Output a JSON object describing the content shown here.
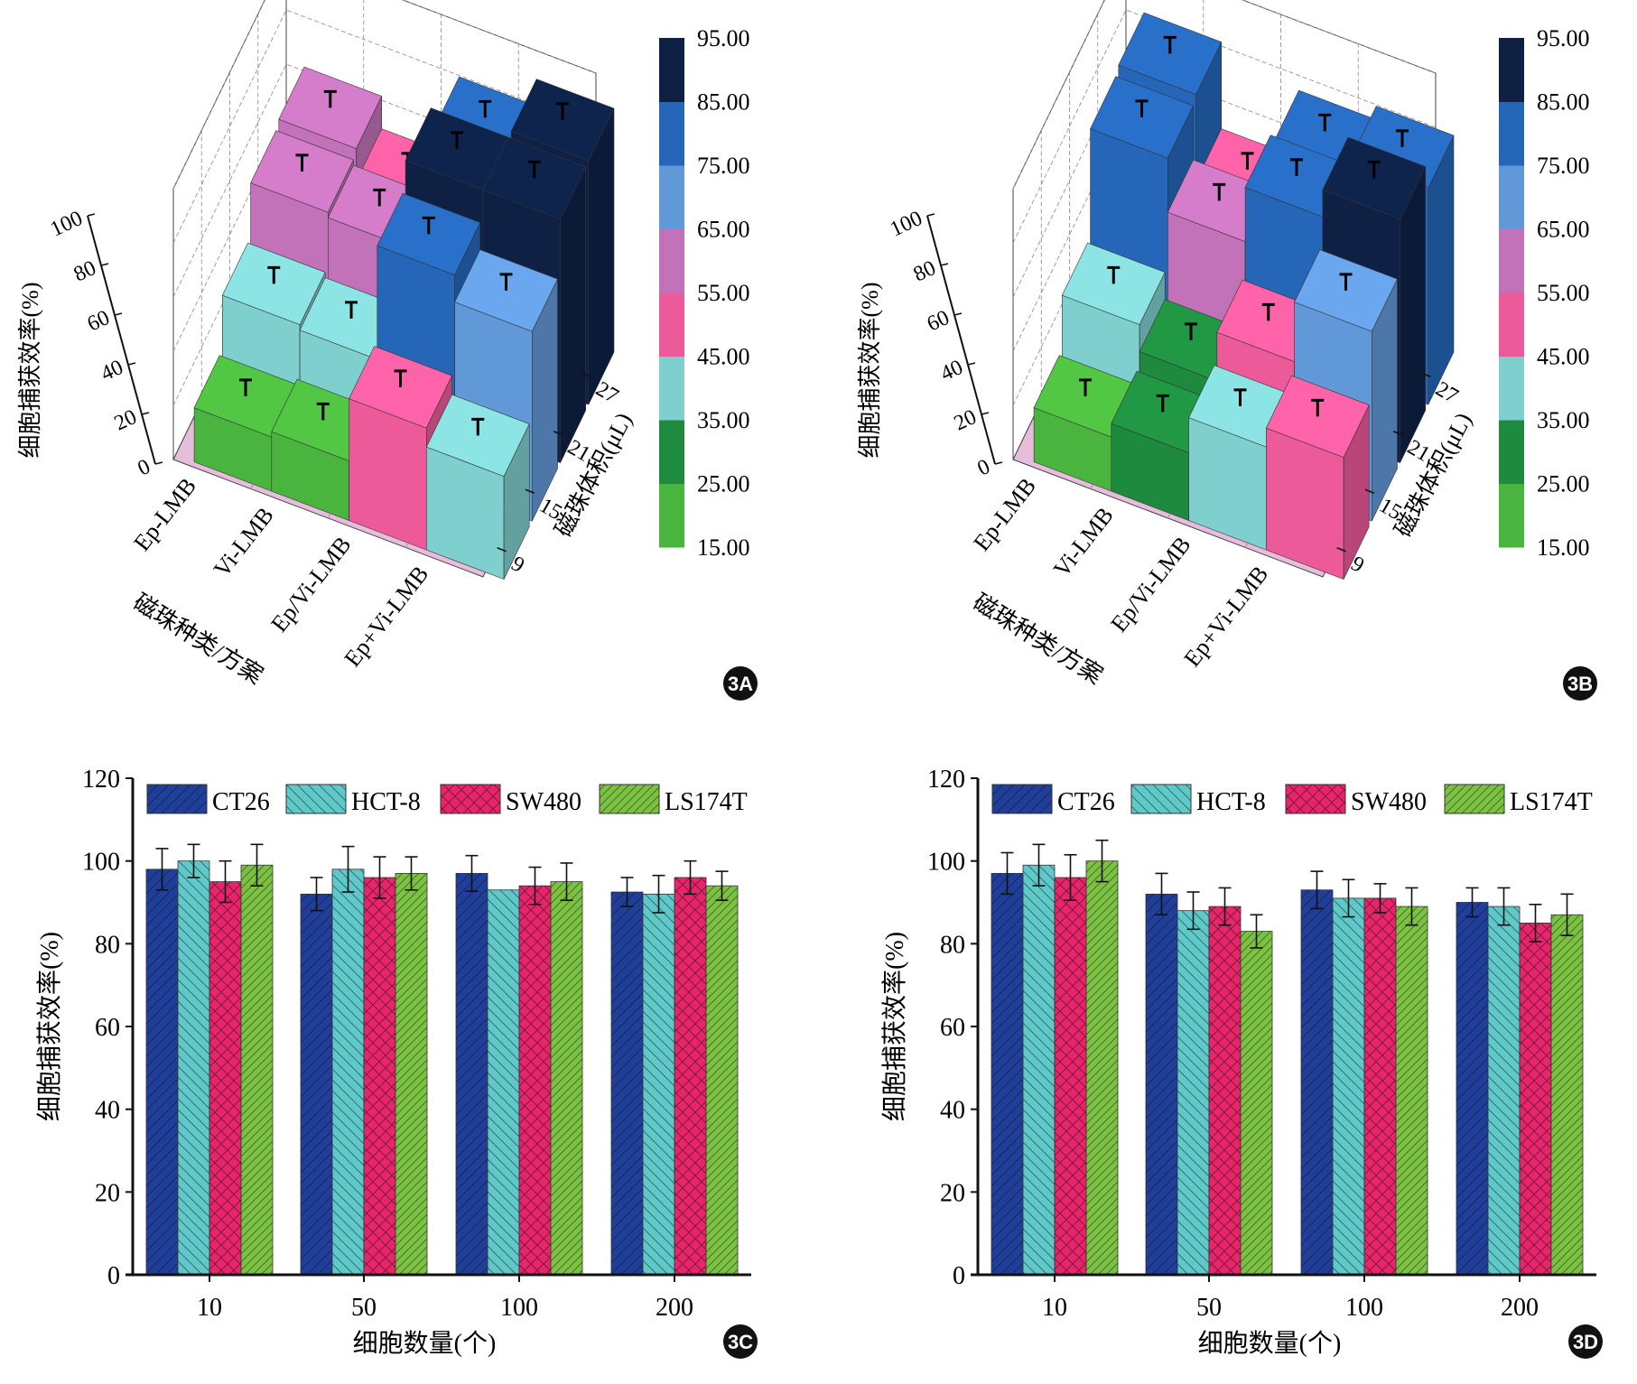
{
  "colors": {
    "CT26": "#1f3f9a",
    "HCT-8": "#5fc8c8",
    "SW480": "#e8246a",
    "LS174T": "#7cc242"
  },
  "colorbar": {
    "levels": [
      "15.00",
      "25.00",
      "35.00",
      "45.00",
      "55.00",
      "65.00",
      "75.00",
      "85.00",
      "95.00"
    ],
    "colors": [
      "#4ab53e",
      "#1d8a3e",
      "#7fcfcf",
      "#ec5a9a",
      "#c272b8",
      "#6198d8",
      "#2566b8",
      "#0e2145"
    ]
  },
  "chart_data": [
    {
      "panel_label": "3A",
      "type": "bar3d",
      "x_categories": [
        "Ep-LMB",
        "Vi-LMB",
        "Ep/Vi-LMB",
        "Ep+Vi-LMB"
      ],
      "y_categories": [
        "9",
        "15",
        "21",
        "27"
      ],
      "xlabel": "磁珠种类/方案",
      "ylabel": "磁珠体积(μL)",
      "zlabel": "细胞捕获效率(%)",
      "z_ticks": [
        "0",
        "20",
        "40",
        "60",
        "80",
        "100"
      ],
      "zlim": [
        0,
        100
      ],
      "grid": true,
      "values": [
        [
          20,
          40,
          60,
          62
        ],
        [
          22,
          38,
          58,
          50
        ],
        [
          45,
          80,
          90,
          80
        ],
        [
          38,
          70,
          90,
          90
        ]
      ]
    },
    {
      "panel_label": "3B",
      "type": "bar3d",
      "x_categories": [
        "Ep-LMB",
        "Vi-LMB",
        "Ep/Vi-LMB",
        "Ep+Vi-LMB"
      ],
      "y_categories": [
        "9",
        "15",
        "21",
        "27"
      ],
      "xlabel": "磁珠种类/方案",
      "ylabel": "磁珠体积(μL)",
      "zlabel": "细胞捕获效率(%)",
      "z_ticks": [
        "0",
        "20",
        "40",
        "60",
        "80",
        "100"
      ],
      "zlim": [
        0,
        100
      ],
      "grid": true,
      "values": [
        [
          20,
          40,
          80,
          82
        ],
        [
          25,
          30,
          60,
          50
        ],
        [
          38,
          48,
          80,
          75
        ],
        [
          45,
          70,
          90,
          80
        ]
      ]
    },
    {
      "panel_label": "3C",
      "type": "bar",
      "categories": [
        "10",
        "50",
        "100",
        "200"
      ],
      "xlabel": "细胞数量(个)",
      "ylabel": "细胞捕获效率(%)",
      "y_ticks": [
        "0",
        "20",
        "40",
        "60",
        "80",
        "100",
        "120"
      ],
      "ylim": [
        0,
        120
      ],
      "legend": "top",
      "series": [
        {
          "name": "CT26",
          "values": [
            98,
            92,
            97,
            92.5
          ],
          "errors": [
            5,
            4,
            4.3,
            3.5
          ]
        },
        {
          "name": "HCT-8",
          "values": [
            100,
            98,
            93,
            92
          ],
          "errors": [
            4,
            5.5,
            0,
            4.5
          ]
        },
        {
          "name": "SW480",
          "values": [
            95,
            96,
            94,
            96
          ],
          "errors": [
            5,
            5,
            4.5,
            4
          ]
        },
        {
          "name": "LS174T",
          "values": [
            99,
            97,
            95,
            94
          ],
          "errors": [
            5,
            4,
            4.5,
            3.5
          ]
        }
      ]
    },
    {
      "panel_label": "3D",
      "type": "bar",
      "categories": [
        "10",
        "50",
        "100",
        "200"
      ],
      "xlabel": "细胞数量(个)",
      "ylabel": "细胞捕获效率(%)",
      "y_ticks": [
        "0",
        "20",
        "40",
        "60",
        "80",
        "100",
        "120"
      ],
      "ylim": [
        0,
        120
      ],
      "legend": "top",
      "series": [
        {
          "name": "CT26",
          "values": [
            97,
            92,
            93,
            90
          ],
          "errors": [
            5,
            5,
            4.5,
            3.5
          ]
        },
        {
          "name": "HCT-8",
          "values": [
            99,
            88,
            91,
            89
          ],
          "errors": [
            5,
            4.5,
            4.5,
            4.5
          ]
        },
        {
          "name": "SW480",
          "values": [
            96,
            89,
            91,
            85
          ],
          "errors": [
            5.5,
            4.5,
            3.5,
            4.5
          ]
        },
        {
          "name": "LS174T",
          "values": [
            100,
            83,
            89,
            87
          ],
          "errors": [
            5,
            4,
            4.5,
            5
          ]
        }
      ]
    }
  ]
}
